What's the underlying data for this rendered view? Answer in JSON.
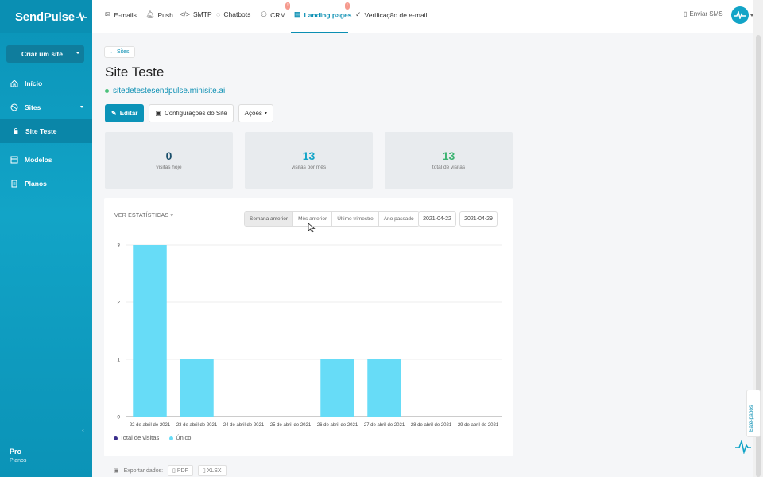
{
  "sidebar": {
    "logo": "SendPulse",
    "create_label": "Criar um site",
    "items": [
      {
        "label": "Início"
      },
      {
        "label": "Sites"
      },
      {
        "label": "Site Teste"
      },
      {
        "label": "Modelos"
      },
      {
        "label": "Planos"
      }
    ],
    "plan_name": "Pro",
    "plan_link": "Planos"
  },
  "topnav": {
    "items": [
      {
        "label": "E-mails"
      },
      {
        "label": "Push"
      },
      {
        "label": "SMTP"
      },
      {
        "label": "Chatbots"
      },
      {
        "label": "CRM",
        "badge": "!"
      },
      {
        "label": "Landing pages",
        "badge": "!"
      },
      {
        "label": "Verificação de e-mail"
      }
    ],
    "sms_label": "Enviar SMS"
  },
  "page": {
    "back_label": "← Sites",
    "title": "Site Teste",
    "url": "sitedetestesendpulse.minisite.ai",
    "edit_label": "Editar",
    "config_label": "Configurações do Site",
    "actions_label": "Ações"
  },
  "stats": [
    {
      "value": "0",
      "label": "visitas hoje",
      "color": "#1b4f6b"
    },
    {
      "value": "13",
      "label": "visitas por mês",
      "color": "#12a4c7"
    },
    {
      "value": "13",
      "label": "total de visitas",
      "color": "#3cb371"
    }
  ],
  "chart_controls": {
    "stats_toggle": "VER ESTATÍSTICAS",
    "periods": [
      "Semana anterior",
      "Mês anterior",
      "Último trimestre",
      "Ano passado"
    ],
    "selected_period": "Semana anterior",
    "date_from": "2021-04-22",
    "date_to": "2021-04-29"
  },
  "chart_data": {
    "type": "bar",
    "categories": [
      "22 de abril de 2021",
      "23 de abril de 2021",
      "24 de abril de 2021",
      "25 de abril de 2021",
      "26 de abril de 2021",
      "27 de abril de 2021",
      "28 de abril de 2021",
      "29 de abril de 2021"
    ],
    "series": [
      {
        "name": "Total de visitas",
        "color": "#3b2e8c",
        "values": [
          0,
          0,
          0,
          0,
          0,
          0,
          0,
          0
        ]
      },
      {
        "name": "Único",
        "color": "#67dcf7",
        "values": [
          3,
          1,
          0,
          0,
          1,
          1,
          0,
          0
        ]
      }
    ],
    "yticks": [
      0,
      1,
      2,
      3
    ],
    "ylim": [
      0,
      3
    ],
    "grid": true,
    "legend": "bottom-left"
  },
  "export": {
    "label": "Exportar dados:",
    "pdf": "PDF",
    "xlsx": "XLSX"
  },
  "chat_tab": "Bate-papos"
}
